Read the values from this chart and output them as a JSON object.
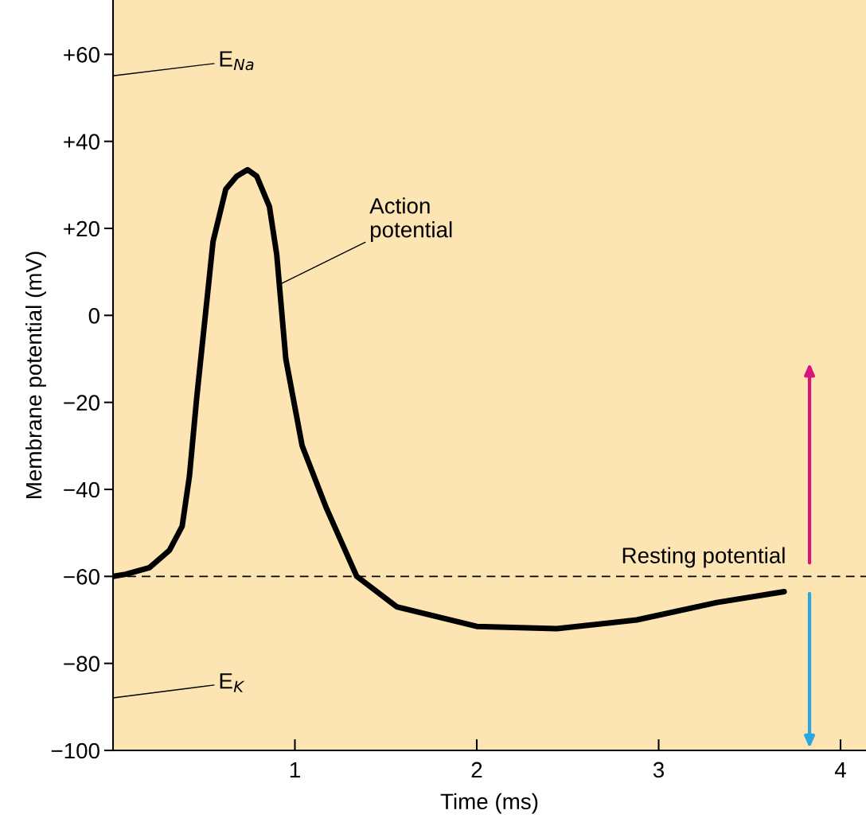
{
  "chart_data": {
    "type": "line",
    "xlabel": "Time (ms)",
    "ylabel": "Membrane potential (mV)",
    "series": [
      {
        "color": "#000000",
        "x": [
          0,
          0.07,
          0.2,
          0.31,
          0.38,
          0.42,
          0.46,
          0.51,
          0.55,
          0.62,
          0.68,
          0.74,
          0.79,
          0.86,
          0.9,
          0.95,
          1.04,
          1.17,
          1.34,
          1.56,
          2.0,
          2.44,
          2.88,
          3.32,
          3.69
        ],
        "values": [
          -60,
          -59.5,
          -58,
          -54,
          -48.5,
          -37,
          -19,
          1,
          17,
          29,
          32,
          33.5,
          32,
          25,
          14,
          -10,
          -30,
          -44,
          -60,
          -67,
          -71.5,
          -72,
          -70,
          -66,
          -63.5
        ]
      }
    ],
    "xlim": [
      0,
      4.14
    ],
    "ylim": [
      -100,
      72.5
    ],
    "xticks": [
      1,
      2,
      3,
      4
    ],
    "yticks": [
      {
        "value": 60,
        "label": "+60"
      },
      {
        "value": 40,
        "label": "+40"
      },
      {
        "value": 20,
        "label": "+20"
      },
      0,
      {
        "value": -20,
        "label": "−20"
      },
      {
        "value": -40,
        "label": "−40"
      },
      {
        "value": -60,
        "label": "−60"
      },
      {
        "value": -80,
        "label": "−80"
      },
      {
        "value": -100,
        "label": "−100"
      }
    ],
    "ref_lines": [
      {
        "axis": "y",
        "value": -60,
        "label": "Resting potential",
        "color": "#000000",
        "line_style": "dashed"
      }
    ],
    "annotations": [
      "E$_{Na}$",
      "E$_{K}$",
      {
        "text": "Action\npotential",
        "x": 0.91,
        "y": 7
      }
    ],
    "grid": false,
    "legend": false
  }
}
